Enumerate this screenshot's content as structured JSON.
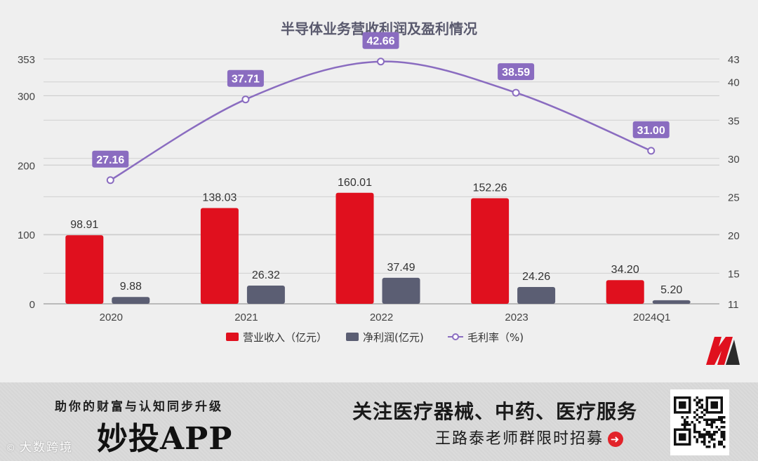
{
  "chart_data": {
    "type": "bar",
    "title": "半导体业务营收利润及盈利情况",
    "categories": [
      "2020",
      "2021",
      "2022",
      "2023",
      "2024Q1"
    ],
    "series": [
      {
        "name": "营业收入（亿元）",
        "type": "bar",
        "axis": "left",
        "color": "#e0101e",
        "values": [
          98.91,
          138.03,
          160.01,
          152.26,
          34.2
        ],
        "labels": [
          "98.91",
          "138.03",
          "160.01",
          "152.26",
          "34.20"
        ]
      },
      {
        "name": "净利润(亿元)",
        "type": "bar",
        "axis": "left",
        "color": "#5b5e73",
        "values": [
          9.88,
          26.32,
          37.49,
          24.26,
          5.2
        ],
        "labels": [
          "9.88",
          "26.32",
          "37.49",
          "24.26",
          "5.20"
        ]
      },
      {
        "name": "毛利率（%)",
        "type": "line",
        "axis": "right",
        "color": "#8a6cc0",
        "values": [
          27.16,
          37.71,
          42.66,
          38.59,
          31.0
        ],
        "labels": [
          "27.16",
          "37.71",
          "42.66",
          "38.59",
          "31.00"
        ]
      }
    ],
    "left_axis": {
      "ylim": [
        0,
        353
      ],
      "ticks": [
        0,
        100,
        200,
        300,
        353
      ],
      "tick_labels": [
        "0",
        "100",
        "200",
        "300",
        "353"
      ]
    },
    "right_axis": {
      "ylim": [
        11,
        43
      ],
      "ticks": [
        11,
        15,
        20,
        25,
        30,
        35,
        40,
        43
      ],
      "tick_labels": [
        "11",
        "15",
        "20",
        "25",
        "30",
        "35",
        "40",
        "43"
      ]
    },
    "grid": true,
    "legend_position": "bottom"
  },
  "banner": {
    "slogan": "助你的财富与认知同步升级",
    "app_name": "妙投APP",
    "headline": "关注医疗器械、中药、医疗服务",
    "subline": "王路泰老师群限时招募",
    "arrow_glyph": "➜",
    "watermark": "大数跨境",
    "watermark_icon": "©"
  }
}
